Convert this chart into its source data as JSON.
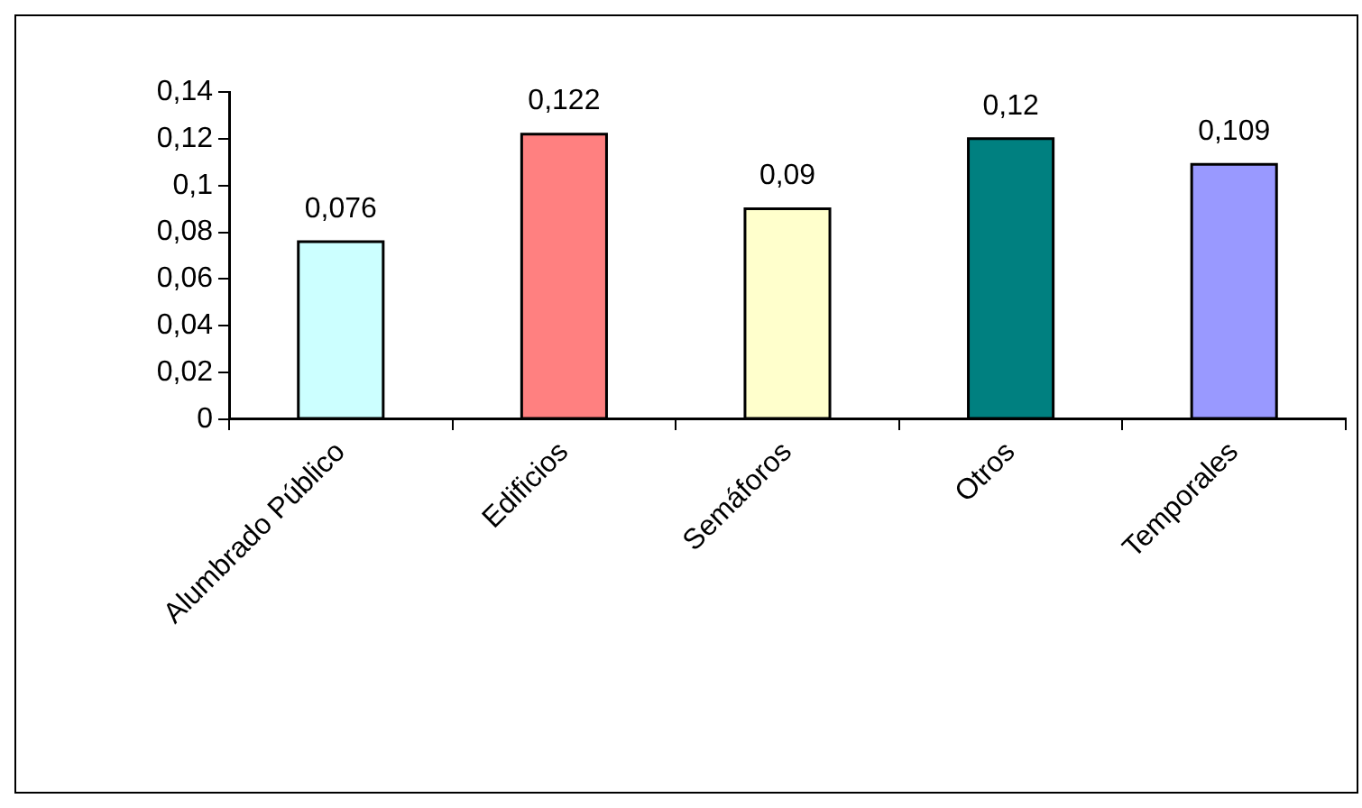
{
  "chart_data": {
    "type": "bar",
    "categories": [
      "Alumbrado Público",
      "Edificios",
      "Semáforos",
      "Otros",
      "Temporales"
    ],
    "values": [
      0.076,
      0.122,
      0.09,
      0.12,
      0.109
    ],
    "colors": [
      "#ccffff",
      "#ff8080",
      "#ffffcc",
      "#008080",
      "#9999ff"
    ],
    "value_labels": [
      "0,076",
      "0,122",
      "0,09",
      "0,12",
      "0,109"
    ],
    "ylim": [
      0,
      0.14
    ],
    "yticks": [
      {
        "value": 0,
        "label": "0"
      },
      {
        "value": 0.02,
        "label": "0,02"
      },
      {
        "value": 0.04,
        "label": "0,04"
      },
      {
        "value": 0.06,
        "label": "0,06"
      },
      {
        "value": 0.08,
        "label": "0,08"
      },
      {
        "value": 0.1,
        "label": "0,1"
      },
      {
        "value": 0.12,
        "label": "0,12"
      },
      {
        "value": 0.14,
        "label": "0,14"
      }
    ],
    "grid": false,
    "legend": false
  }
}
